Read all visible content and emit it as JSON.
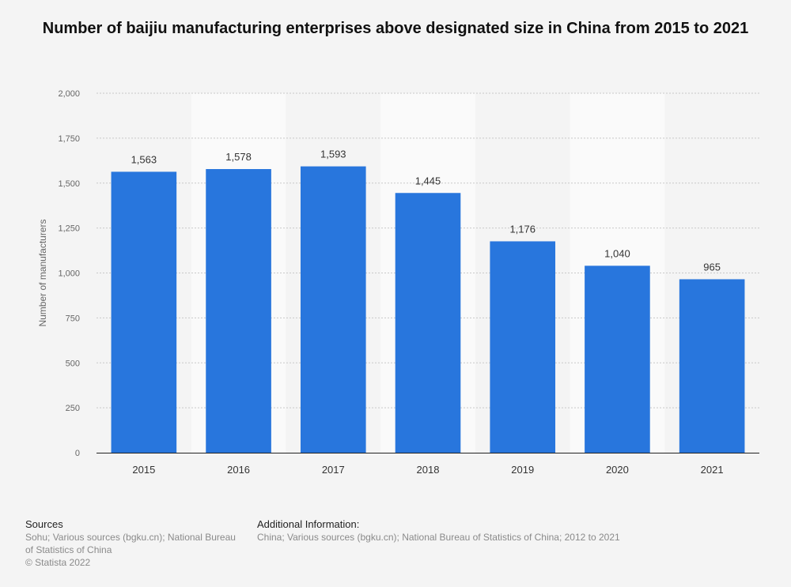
{
  "title": "Number of baijiu manufacturing enterprises above designated size in China from 2015 to 2021",
  "colors": {
    "bar": "#2876dd",
    "grid": "#c8c8c8",
    "band": "#fafafa",
    "axis": "#222222",
    "tick_text": "#666666",
    "label_text": "#333333"
  },
  "chart_data": {
    "type": "bar",
    "categories": [
      "2015",
      "2016",
      "2017",
      "2018",
      "2019",
      "2020",
      "2021"
    ],
    "values": [
      1563,
      1578,
      1593,
      1445,
      1176,
      1040,
      965
    ],
    "value_labels": [
      "1,563",
      "1,578",
      "1,593",
      "1,445",
      "1,176",
      "1,040",
      "965"
    ],
    "ylabel": "Number of manufacturers",
    "xlabel": "",
    "ylim": [
      0,
      2000
    ],
    "yticks": [
      0,
      250,
      500,
      750,
      1000,
      1250,
      1500,
      1750,
      2000
    ],
    "ytick_labels": [
      "0",
      "250",
      "500",
      "750",
      "1,000",
      "1,250",
      "1,500",
      "1,750",
      "2,000"
    ],
    "grid": true
  },
  "footer": {
    "sources_heading": "Sources",
    "sources_lines": [
      "Sohu; Various sources (bgku.cn); National Bureau",
      "of Statistics of China",
      "© Statista 2022"
    ],
    "additional_heading": "Additional Information:",
    "additional_text": "China; Various sources (bgku.cn); National Bureau of Statistics of China; 2012 to 2021"
  }
}
